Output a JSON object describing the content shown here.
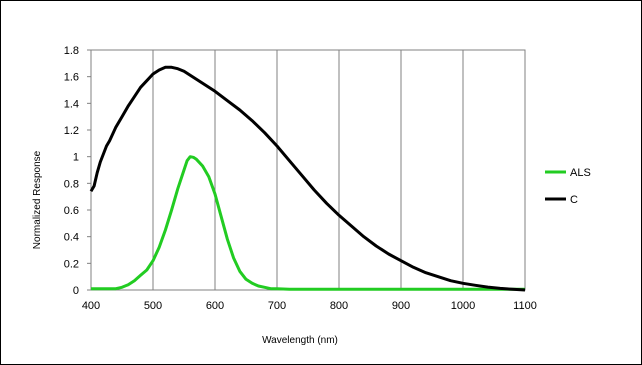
{
  "chart_data": {
    "type": "line",
    "title": "",
    "xlabel": "Wavelength (nm)",
    "ylabel": "Normalized Response",
    "xlim": [
      400,
      1100
    ],
    "ylim": [
      0,
      1.8
    ],
    "x_ticks": [
      400,
      500,
      600,
      700,
      800,
      900,
      1000,
      1100
    ],
    "y_ticks": [
      0,
      0.2,
      0.4,
      0.6,
      0.8,
      1,
      1.2,
      1.4,
      1.6,
      1.8
    ],
    "grid": "vertical",
    "legend_position": "right",
    "series": [
      {
        "name": "ALS",
        "color": "#22cc22",
        "x": [
          400,
          420,
          440,
          450,
          460,
          470,
          480,
          490,
          500,
          510,
          520,
          530,
          540,
          550,
          555,
          560,
          565,
          570,
          580,
          590,
          600,
          610,
          620,
          630,
          640,
          650,
          660,
          670,
          680,
          690,
          700,
          720,
          750,
          800,
          900,
          1000,
          1100
        ],
        "y": [
          0.01,
          0.01,
          0.01,
          0.02,
          0.04,
          0.07,
          0.11,
          0.15,
          0.22,
          0.32,
          0.45,
          0.6,
          0.76,
          0.9,
          0.97,
          1.0,
          0.995,
          0.98,
          0.93,
          0.85,
          0.72,
          0.55,
          0.38,
          0.24,
          0.14,
          0.08,
          0.05,
          0.03,
          0.02,
          0.01,
          0.01,
          0.005,
          0.005,
          0.005,
          0.005,
          0.005,
          0.005
        ]
      },
      {
        "name": "C",
        "color": "#000000",
        "x": [
          400,
          405,
          410,
          415,
          420,
          425,
          430,
          440,
          450,
          460,
          470,
          480,
          490,
          500,
          510,
          520,
          530,
          540,
          550,
          560,
          570,
          580,
          590,
          600,
          620,
          640,
          660,
          680,
          700,
          720,
          740,
          760,
          780,
          800,
          820,
          840,
          860,
          880,
          900,
          920,
          940,
          960,
          980,
          1000,
          1020,
          1040,
          1060,
          1080,
          1100
        ],
        "y": [
          0.74,
          0.78,
          0.88,
          0.96,
          1.02,
          1.08,
          1.12,
          1.22,
          1.3,
          1.38,
          1.45,
          1.52,
          1.57,
          1.62,
          1.65,
          1.67,
          1.67,
          1.66,
          1.64,
          1.61,
          1.58,
          1.55,
          1.52,
          1.49,
          1.42,
          1.35,
          1.27,
          1.18,
          1.08,
          0.97,
          0.86,
          0.75,
          0.65,
          0.56,
          0.48,
          0.4,
          0.33,
          0.27,
          0.22,
          0.17,
          0.13,
          0.1,
          0.07,
          0.05,
          0.035,
          0.022,
          0.012,
          0.005,
          0.0
        ]
      }
    ]
  }
}
